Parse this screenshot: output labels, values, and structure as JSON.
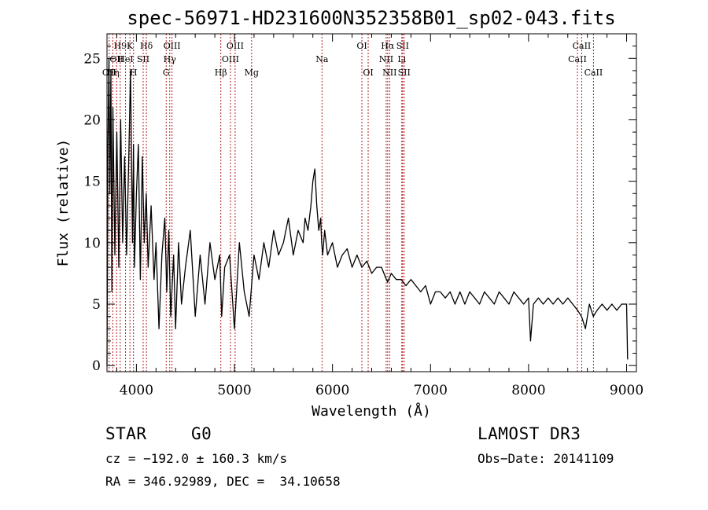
{
  "chart_data": {
    "type": "line",
    "title": "spec-56971-HD231600N352358B01_sp02-043.fits",
    "xlabel": "Wavelength (Å)",
    "ylabel": "Flux (relative)",
    "xlim": [
      3700,
      9100
    ],
    "ylim": [
      -0.5,
      27
    ],
    "xticks": [
      4000,
      5000,
      6000,
      7000,
      8000,
      9000
    ],
    "yticks": [
      0,
      5,
      10,
      15,
      20,
      25
    ],
    "series": [
      {
        "name": "flux",
        "x": [
          3700,
          3710,
          3720,
          3730,
          3740,
          3750,
          3760,
          3780,
          3800,
          3820,
          3840,
          3860,
          3880,
          3900,
          3920,
          3940,
          3960,
          3970,
          3980,
          4000,
          4020,
          4040,
          4060,
          4080,
          4100,
          4120,
          4150,
          4180,
          4200,
          4230,
          4260,
          4290,
          4310,
          4330,
          4350,
          4380,
          4400,
          4430,
          4460,
          4500,
          4550,
          4600,
          4650,
          4700,
          4750,
          4800,
          4850,
          4870,
          4900,
          4950,
          5000,
          5050,
          5100,
          5150,
          5200,
          5250,
          5300,
          5350,
          5400,
          5450,
          5500,
          5550,
          5600,
          5650,
          5700,
          5720,
          5750,
          5780,
          5800,
          5820,
          5840,
          5860,
          5880,
          5890,
          5900,
          5920,
          5950,
          6000,
          6050,
          6100,
          6150,
          6200,
          6250,
          6300,
          6350,
          6400,
          6450,
          6500,
          6550,
          6563,
          6600,
          6650,
          6700,
          6750,
          6800,
          6850,
          6900,
          6950,
          7000,
          7050,
          7100,
          7150,
          7200,
          7250,
          7300,
          7350,
          7400,
          7450,
          7500,
          7550,
          7600,
          7650,
          7700,
          7750,
          7800,
          7850,
          7900,
          7950,
          8000,
          8020,
          8050,
          8100,
          8150,
          8200,
          8250,
          8300,
          8350,
          8400,
          8450,
          8500,
          8540,
          8580,
          8620,
          8660,
          8700,
          8750,
          8800,
          8850,
          8900,
          8950,
          9000,
          9010
        ],
        "y": [
          0,
          18,
          25,
          14,
          24,
          6,
          21,
          9,
          19,
          8,
          20,
          10,
          17,
          9,
          16,
          24,
          10,
          18,
          8,
          14,
          18,
          7,
          17,
          10,
          14,
          8,
          13,
          7,
          10,
          3,
          9,
          12,
          6,
          11,
          4,
          9,
          3,
          10,
          5,
          8,
          11,
          4,
          9,
          5,
          10,
          7,
          9,
          4,
          8,
          9,
          3,
          10,
          6,
          4,
          9,
          7,
          10,
          8,
          11,
          9,
          10,
          12,
          9,
          11,
          10,
          12,
          11,
          13,
          15,
          16,
          13,
          11,
          12,
          10,
          9,
          11,
          9,
          10,
          8,
          9,
          9.5,
          8,
          9,
          8,
          8.5,
          7.5,
          8,
          8,
          7,
          6.8,
          7.5,
          7,
          7,
          6.5,
          7,
          6.5,
          6,
          6.5,
          5,
          6,
          6,
          5.5,
          6,
          5,
          6,
          5,
          6,
          5.5,
          5,
          6,
          5.5,
          5,
          6,
          5.5,
          5,
          6,
          5.5,
          5,
          5.5,
          2,
          5,
          5.5,
          5,
          5.5,
          5,
          5.5,
          5,
          5.5,
          5,
          4.5,
          4,
          3,
          5,
          4,
          4.5,
          5,
          4.5,
          5,
          4.5,
          5,
          5,
          0.5
        ]
      }
    ],
    "line_markers": [
      {
        "wl": 3722,
        "row": 2,
        "label": "OII"
      },
      {
        "wl": 3760,
        "row": 2,
        "label": "Hη"
      },
      {
        "wl": 3798,
        "row": 1,
        "label": "OII"
      },
      {
        "wl": 3835,
        "row": 0,
        "label": "H9"
      },
      {
        "wl": 3889,
        "row": 1,
        "label": "HeI"
      },
      {
        "wl": 3934,
        "row": 0,
        "label": "K"
      },
      {
        "wl": 3970,
        "row": 2,
        "label": "H"
      },
      {
        "wl": 4069,
        "row": 1,
        "label": "SII"
      },
      {
        "wl": 4102,
        "row": 0,
        "label": "Hδ"
      },
      {
        "wl": 4304,
        "row": 2,
        "label": "G"
      },
      {
        "wl": 4340,
        "row": 1,
        "label": "Hγ"
      },
      {
        "wl": 4363,
        "row": 0,
        "label": "OIII"
      },
      {
        "wl": 4861,
        "row": 2,
        "label": "Hβ"
      },
      {
        "wl": 4959,
        "row": 1,
        "label": "OIII"
      },
      {
        "wl": 5007,
        "row": 0,
        "label": "OIII"
      },
      {
        "wl": 5175,
        "row": 2,
        "label": "Mg"
      },
      {
        "wl": 5893,
        "row": 1,
        "label": "Na"
      },
      {
        "wl": 6300,
        "row": 0,
        "label": "OI"
      },
      {
        "wl": 6364,
        "row": 2,
        "label": "OI"
      },
      {
        "wl": 6548,
        "row": 1,
        "label": "NII"
      },
      {
        "wl": 6563,
        "row": 0,
        "label": "Hα"
      },
      {
        "wl": 6583,
        "row": 2,
        "label": "NII"
      },
      {
        "wl": 6707,
        "row": 1,
        "label": "Li"
      },
      {
        "wl": 6716,
        "row": 0,
        "label": "SII"
      },
      {
        "wl": 6731,
        "row": 2,
        "label": "SII"
      },
      {
        "wl": 8498,
        "row": 1,
        "label": "CaII"
      },
      {
        "wl": 8542,
        "row": 0,
        "label": "CaII"
      },
      {
        "wl": 8662,
        "row": 2,
        "label": "CaII"
      }
    ],
    "marker_color": "#b22222"
  },
  "info": {
    "class": "STAR",
    "subclass": "G0",
    "survey": "LAMOST DR3",
    "cz": "cz = −192.0 ± 160.3 km/s",
    "obs_date": "Obs−Date: 20141109",
    "coords": "RA = 346.92989, DEC =  34.10658"
  }
}
